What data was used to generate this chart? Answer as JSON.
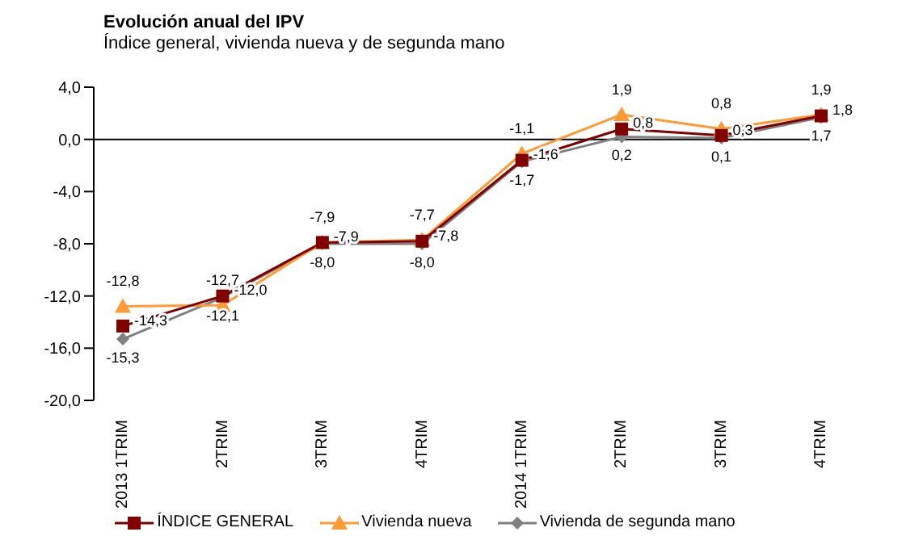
{
  "chart_data": {
    "type": "line",
    "title": "Evolución anual del IPV",
    "subtitle": "Índice general, vivienda nueva y de segunda mano",
    "categories": [
      "2013 1TRIM",
      "2TRIM",
      "3TRIM",
      "4TRIM",
      "2014 1TRIM",
      "2TRIM",
      "3TRIM",
      "4TRIM"
    ],
    "series": [
      {
        "name": "ÍNDICE GENERAL",
        "color": "#800000",
        "marker": "square",
        "values": [
          -14.3,
          -12.0,
          -7.9,
          -7.8,
          -1.6,
          0.8,
          0.3,
          1.8
        ],
        "value_labels": [
          "-14,3",
          "-12,0",
          "-7,9",
          "-7,8",
          "-1,6",
          "0,8",
          "0,3",
          "1,8"
        ]
      },
      {
        "name": "Vivienda nueva",
        "color": "#ff9933",
        "marker": "triangle",
        "values": [
          -12.8,
          -12.7,
          -7.9,
          -7.7,
          -1.1,
          1.9,
          0.8,
          1.9
        ],
        "value_labels": [
          "-12,8",
          "-12,7",
          "-7,9",
          "-7,7",
          "-1,1",
          "1,9",
          "0,8",
          "1,9"
        ]
      },
      {
        "name": "Vivienda de segunda mano",
        "color": "#808080",
        "marker": "diamond",
        "values": [
          -15.3,
          -12.1,
          -8.0,
          -8.0,
          -1.7,
          0.2,
          0.1,
          1.7
        ],
        "value_labels": [
          "-15,3",
          "-12,1",
          "-8,0",
          "-8,0",
          "-1,7",
          "0,2",
          "0,1",
          "1,7"
        ]
      }
    ],
    "ref_lines": [
      {
        "axis": "y",
        "value": 0,
        "color": "#000000"
      }
    ],
    "ylim": [
      -20,
      4
    ],
    "yticks": [
      {
        "value": -20,
        "label": "-20,0"
      },
      {
        "value": -16,
        "label": "-16,0"
      },
      {
        "value": -12,
        "label": "-12,0"
      },
      {
        "value": -8,
        "label": "-8,0"
      },
      {
        "value": -4,
        "label": "-4,0"
      },
      {
        "value": 0,
        "label": "0,0"
      },
      {
        "value": 4,
        "label": "4,0"
      }
    ],
    "legend": "bottom"
  }
}
